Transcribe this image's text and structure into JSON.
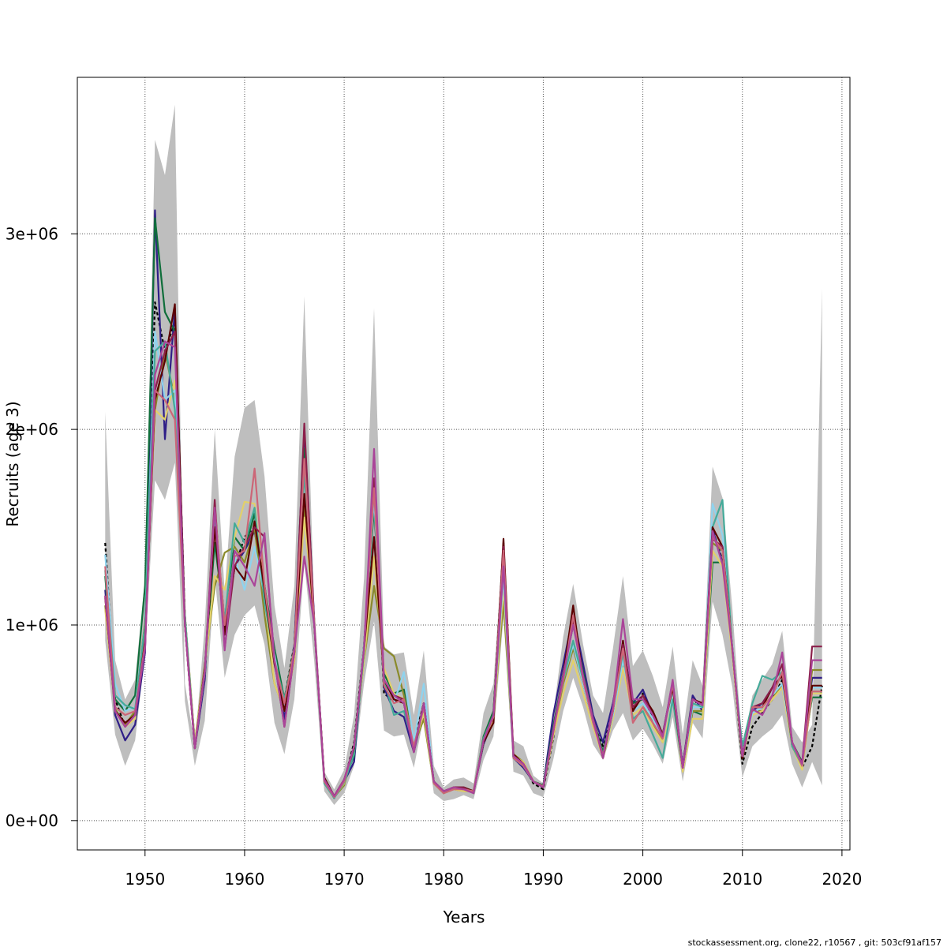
{
  "chart_data": {
    "type": "line",
    "xlabel": "Years",
    "ylabel": "Recruits (age 3)",
    "xlim": [
      1943.2,
      2020.8
    ],
    "ylim": [
      -150000,
      3800000
    ],
    "x_ticks": [
      1950,
      1960,
      1970,
      1980,
      1990,
      2000,
      2010,
      2020
    ],
    "x_tick_labels": [
      "1950",
      "1960",
      "1970",
      "1980",
      "1990",
      "2000",
      "2010",
      "2020"
    ],
    "y_ticks": [
      0,
      1000000,
      2000000,
      3000000
    ],
    "y_tick_labels": [
      "0e+00",
      "1e+06",
      "2e+06",
      "3e+06"
    ],
    "grid": true,
    "footer": "stockassessment.org, clone22, r10567 , git: 503cf91af157",
    "years": [
      1946,
      1947,
      1948,
      1949,
      1950,
      1951,
      1952,
      1953,
      1954,
      1955,
      1956,
      1957,
      1958,
      1959,
      1960,
      1961,
      1962,
      1963,
      1964,
      1965,
      1966,
      1967,
      1968,
      1969,
      1970,
      1971,
      1972,
      1973,
      1974,
      1975,
      1976,
      1977,
      1978,
      1979,
      1980,
      1981,
      1982,
      1983,
      1984,
      1985,
      1986,
      1987,
      1988,
      1989,
      1990,
      1991,
      1992,
      1993,
      1994,
      1995,
      1996,
      1997,
      1998,
      1999,
      2000,
      2001,
      2002,
      2003,
      2004,
      2005,
      2006,
      2007,
      2008,
      2009,
      2010,
      2011,
      2012,
      2013,
      2014,
      2015,
      2016,
      2017,
      2018
    ],
    "band_color": "#bebebe",
    "band_upper": [
      2090000,
      820000,
      620000,
      720000,
      1240000,
      3480000,
      3300000,
      3660000,
      700000,
      380000,
      1000000,
      2000000,
      1170000,
      1860000,
      2110000,
      2150000,
      1760000,
      1100000,
      780000,
      1200000,
      2680000,
      1080000,
      250000,
      160000,
      260000,
      540000,
      1240000,
      2620000,
      890000,
      850000,
      860000,
      540000,
      870000,
      280000,
      170000,
      210000,
      220000,
      190000,
      550000,
      700000,
      1460000,
      410000,
      380000,
      230000,
      190000,
      540000,
      940000,
      1210000,
      900000,
      640000,
      550000,
      880000,
      1250000,
      790000,
      870000,
      740000,
      580000,
      890000,
      440000,
      820000,
      690000,
      1810000,
      1650000,
      1080000,
      360000,
      640000,
      720000,
      800000,
      970000,
      480000,
      400000,
      490000,
      2720000
    ],
    "band_lower": [
      920000,
      440000,
      280000,
      410000,
      850000,
      1740000,
      1640000,
      1830000,
      610000,
      280000,
      510000,
      1250000,
      730000,
      950000,
      1050000,
      1100000,
      900000,
      500000,
      340000,
      620000,
      1320000,
      810000,
      150000,
      80000,
      140000,
      280000,
      700000,
      1020000,
      460000,
      430000,
      440000,
      270000,
      530000,
      140000,
      100000,
      110000,
      130000,
      110000,
      310000,
      430000,
      1040000,
      250000,
      230000,
      140000,
      120000,
      310000,
      560000,
      730000,
      580000,
      390000,
      310000,
      460000,
      550000,
      410000,
      470000,
      390000,
      290000,
      530000,
      200000,
      500000,
      420000,
      1120000,
      950000,
      680000,
      220000,
      380000,
      430000,
      470000,
      540000,
      290000,
      170000,
      300000,
      180000
    ],
    "series": [
      {
        "color": "#000000",
        "dashed": true,
        "values": [
          1420000,
          620000,
          480000,
          560000,
          950000,
          2650000,
          2400000,
          2550000,
          1050000,
          370000,
          760000,
          1600000,
          980000,
          1290000,
          1450000,
          1500000,
          1180000,
          850000,
          620000,
          900000,
          1900000,
          1010000,
          200000,
          115000,
          200000,
          400000,
          900000,
          1700000,
          650000,
          610000,
          620000,
          400000,
          600000,
          190000,
          140000,
          160000,
          170000,
          150000,
          400000,
          550000,
          1420000,
          320000,
          290000,
          190000,
          160000,
          420000,
          720000,
          900000,
          700000,
          500000,
          380000,
          600000,
          860000,
          560000,
          650000,
          520000,
          420000,
          680000,
          280000,
          630000,
          560000,
          1490000,
          1330000,
          860000,
          290000,
          480000,
          550000,
          620000,
          720000,
          380000,
          270000,
          380000,
          690000
        ]
      },
      {
        "color": "#2f1e87",
        "dashed": false,
        "values": [
          1180000,
          540000,
          410000,
          490000,
          860000,
          3120000,
          1950000,
          2620000,
          1020000,
          370000,
          720000,
          1570000,
          1010000,
          1300000,
          1380000,
          1480000,
          1200000,
          860000,
          520000,
          900000,
          2000000,
          1020000,
          210000,
          120000,
          200000,
          300000,
          880000,
          1660000,
          680000,
          560000,
          530000,
          350000,
          570000,
          190000,
          140000,
          170000,
          160000,
          150000,
          390000,
          520000,
          1320000,
          320000,
          270000,
          200000,
          180000,
          540000,
          800000,
          1050000,
          800000,
          540000,
          400000,
          600000,
          900000,
          600000,
          670000,
          540000,
          440000,
          710000,
          280000,
          640000,
          560000,
          1490000,
          1320000,
          880000,
          340000,
          560000,
          600000,
          680000,
          740000,
          380000,
          290000,
          730000,
          730000
        ]
      },
      {
        "color": "#0f6e3a",
        "dashed": false,
        "values": [
          1250000,
          620000,
          560000,
          640000,
          1200000,
          3080000,
          2600000,
          2500000,
          1020000,
          400000,
          780000,
          1420000,
          1020000,
          1450000,
          1380000,
          1570000,
          1200000,
          880000,
          620000,
          880000,
          1900000,
          1000000,
          210000,
          125000,
          210000,
          330000,
          900000,
          1600000,
          750000,
          650000,
          670000,
          360000,
          600000,
          200000,
          150000,
          170000,
          170000,
          140000,
          430000,
          560000,
          1350000,
          320000,
          280000,
          200000,
          180000,
          480000,
          750000,
          1000000,
          760000,
          520000,
          350000,
          560000,
          880000,
          600000,
          620000,
          560000,
          440000,
          700000,
          270000,
          560000,
          540000,
          1320000,
          1320000,
          860000,
          330000,
          580000,
          580000,
          640000,
          760000,
          400000,
          300000,
          630000,
          630000
        ]
      },
      {
        "color": "#8a8a2a",
        "dashed": false,
        "values": [
          1100000,
          570000,
          490000,
          560000,
          1020000,
          2100000,
          2400000,
          2150000,
          1050000,
          400000,
          800000,
          1200000,
          1370000,
          1400000,
          1320000,
          1500000,
          1050000,
          700000,
          560000,
          820000,
          1600000,
          1000000,
          200000,
          120000,
          180000,
          380000,
          820000,
          1200000,
          880000,
          840000,
          640000,
          380000,
          520000,
          190000,
          140000,
          160000,
          150000,
          150000,
          420000,
          530000,
          1120000,
          340000,
          300000,
          200000,
          170000,
          450000,
          700000,
          880000,
          700000,
          500000,
          320000,
          540000,
          800000,
          560000,
          600000,
          500000,
          400000,
          650000,
          260000,
          560000,
          560000,
          1420000,
          1380000,
          880000,
          320000,
          560000,
          560000,
          620000,
          700000,
          390000,
          270000,
          770000,
          770000
        ]
      },
      {
        "color": "#e2d06a",
        "dashed": false,
        "values": [
          1080000,
          560000,
          480000,
          520000,
          1000000,
          2100000,
          2050000,
          2250000,
          1050000,
          400000,
          780000,
          1250000,
          1180000,
          1450000,
          1630000,
          1620000,
          1150000,
          700000,
          560000,
          820000,
          1550000,
          1020000,
          200000,
          120000,
          190000,
          380000,
          820000,
          1350000,
          780000,
          650000,
          620000,
          380000,
          550000,
          190000,
          140000,
          160000,
          150000,
          150000,
          400000,
          510000,
          1200000,
          330000,
          300000,
          200000,
          170000,
          430000,
          650000,
          820000,
          650000,
          480000,
          320000,
          520000,
          780000,
          540000,
          580000,
          480000,
          400000,
          630000,
          250000,
          520000,
          520000,
          1380000,
          1300000,
          840000,
          320000,
          540000,
          560000,
          620000,
          680000,
          380000,
          260000,
          650000,
          650000
        ]
      },
      {
        "color": "#8fd3ee",
        "dashed": false,
        "values": [
          1360000,
          700000,
          560000,
          580000,
          1000000,
          2500000,
          2150000,
          2200000,
          1000000,
          380000,
          760000,
          1550000,
          1000000,
          1350000,
          1180000,
          1400000,
          1150000,
          850000,
          560000,
          880000,
          1800000,
          1000000,
          200000,
          120000,
          200000,
          360000,
          900000,
          1650000,
          700000,
          600000,
          760000,
          400000,
          700000,
          200000,
          150000,
          170000,
          160000,
          150000,
          400000,
          540000,
          1250000,
          320000,
          280000,
          200000,
          170000,
          460000,
          720000,
          900000,
          700000,
          500000,
          330000,
          540000,
          820000,
          560000,
          600000,
          520000,
          420000,
          660000,
          270000,
          580000,
          580000,
          1620000,
          1460000,
          900000,
          330000,
          550000,
          580000,
          640000,
          700000,
          400000,
          280000,
          680000,
          680000
        ]
      },
      {
        "color": "#44aa99",
        "dashed": false,
        "values": [
          1280000,
          640000,
          590000,
          570000,
          1000000,
          2400000,
          2450000,
          2100000,
          1050000,
          380000,
          760000,
          1520000,
          1020000,
          1520000,
          1420000,
          1600000,
          1120000,
          820000,
          620000,
          860000,
          1780000,
          1000000,
          190000,
          115000,
          195000,
          340000,
          860000,
          1700000,
          720000,
          540000,
          560000,
          380000,
          580000,
          190000,
          145000,
          165000,
          160000,
          150000,
          420000,
          540000,
          1300000,
          320000,
          280000,
          200000,
          175000,
          460000,
          720000,
          920000,
          720000,
          500000,
          340000,
          560000,
          860000,
          520000,
          560000,
          440000,
          320000,
          620000,
          270000,
          600000,
          580000,
          1500000,
          1640000,
          860000,
          380000,
          600000,
          740000,
          720000,
          760000,
          380000,
          280000,
          660000,
          660000
        ]
      },
      {
        "color": "#5c0000",
        "dashed": false,
        "values": [
          1140000,
          560000,
          500000,
          540000,
          920000,
          2150000,
          2350000,
          2640000,
          1000000,
          370000,
          780000,
          1500000,
          950000,
          1300000,
          1230000,
          1530000,
          1180000,
          800000,
          560000,
          860000,
          1670000,
          1000000,
          220000,
          125000,
          210000,
          370000,
          880000,
          1450000,
          720000,
          620000,
          600000,
          360000,
          600000,
          200000,
          150000,
          170000,
          170000,
          150000,
          400000,
          500000,
          1440000,
          340000,
          290000,
          200000,
          170000,
          450000,
          740000,
          1100000,
          720000,
          520000,
          320000,
          560000,
          920000,
          560000,
          640000,
          560000,
          440000,
          680000,
          270000,
          620000,
          600000,
          1500000,
          1400000,
          880000,
          320000,
          580000,
          580000,
          680000,
          740000,
          400000,
          290000,
          690000,
          690000
        ]
      },
      {
        "color": "#8b1f4a",
        "dashed": false,
        "values": [
          1150000,
          560000,
          480000,
          540000,
          880000,
          2200000,
          2400000,
          2500000,
          1000000,
          370000,
          770000,
          1640000,
          880000,
          1300000,
          1400000,
          1500000,
          1450000,
          820000,
          480000,
          860000,
          2030000,
          1000000,
          210000,
          125000,
          210000,
          380000,
          880000,
          1750000,
          720000,
          640000,
          620000,
          350000,
          600000,
          200000,
          150000,
          170000,
          170000,
          140000,
          410000,
          540000,
          1400000,
          330000,
          290000,
          200000,
          170000,
          460000,
          740000,
          1020000,
          740000,
          520000,
          330000,
          570000,
          900000,
          580000,
          640000,
          540000,
          440000,
          700000,
          270000,
          620000,
          590000,
          1440000,
          1400000,
          870000,
          330000,
          580000,
          600000,
          680000,
          800000,
          400000,
          290000,
          890000,
          890000
        ]
      },
      {
        "color": "#cc6677",
        "dashed": false,
        "values": [
          1300000,
          580000,
          540000,
          560000,
          900000,
          2200000,
          2150000,
          2050000,
          1000000,
          380000,
          760000,
          1600000,
          1000000,
          1350000,
          1380000,
          1800000,
          1200000,
          820000,
          600000,
          880000,
          1850000,
          1000000,
          200000,
          120000,
          200000,
          380000,
          880000,
          1700000,
          690000,
          600000,
          620000,
          380000,
          580000,
          190000,
          140000,
          160000,
          160000,
          150000,
          410000,
          530000,
          1380000,
          320000,
          280000,
          200000,
          175000,
          450000,
          720000,
          1050000,
          720000,
          500000,
          330000,
          560000,
          880000,
          500000,
          580000,
          500000,
          420000,
          700000,
          270000,
          620000,
          590000,
          1450000,
          1380000,
          880000,
          330000,
          580000,
          580000,
          640000,
          760000,
          400000,
          280000,
          660000,
          660000
        ]
      },
      {
        "color": "#aa4499",
        "dashed": false,
        "values": [
          1150000,
          560000,
          480000,
          540000,
          880000,
          2280000,
          2450000,
          2420000,
          1000000,
          370000,
          770000,
          1600000,
          870000,
          1380000,
          1300000,
          1200000,
          1470000,
          820000,
          480000,
          860000,
          1350000,
          1000000,
          210000,
          125000,
          210000,
          380000,
          880000,
          1900000,
          720000,
          640000,
          600000,
          350000,
          600000,
          200000,
          150000,
          170000,
          160000,
          140000,
          410000,
          540000,
          1300000,
          330000,
          290000,
          200000,
          170000,
          460000,
          740000,
          1000000,
          740000,
          520000,
          320000,
          580000,
          1030000,
          620000,
          620000,
          540000,
          430000,
          720000,
          270000,
          620000,
          590000,
          1480000,
          1310000,
          870000,
          330000,
          570000,
          540000,
          640000,
          860000,
          400000,
          290000,
          820000,
          820000
        ]
      }
    ]
  }
}
